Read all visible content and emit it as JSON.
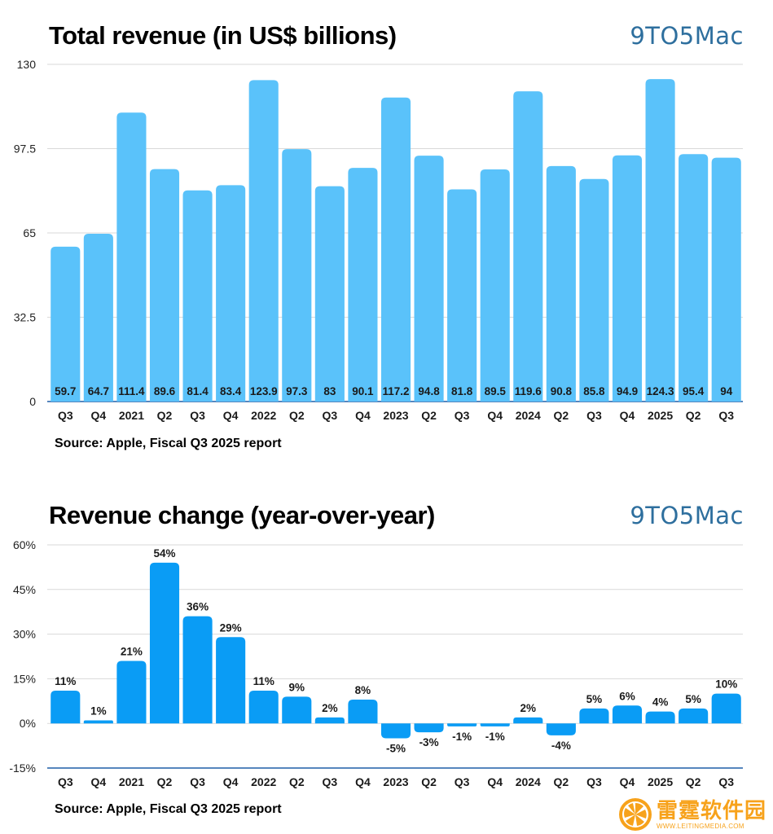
{
  "brand": "9TO5Mac",
  "source": "Source: Apple, Fiscal Q3 2025 report",
  "watermark": {
    "name": "雷霆软件园",
    "url": "WWW.LEITINGMEDIA.COM"
  },
  "colors": {
    "revenue_bar": "#5ac2fa",
    "change_bar": "#0a9cf5",
    "axis_line": "#1f5fa8",
    "grid": "#d9d9d9",
    "brand": "#2e6f9e",
    "watermark": "#f7a21b"
  },
  "chart_data": [
    {
      "type": "bar",
      "title": "Total revenue (in US$ billions)",
      "categories": [
        "Q3",
        "Q4",
        "2021",
        "Q2",
        "Q3",
        "Q4",
        "2022",
        "Q2",
        "Q3",
        "Q4",
        "2023",
        "Q2",
        "Q3",
        "Q4",
        "2024",
        "Q2",
        "Q3",
        "Q4",
        "2025",
        "Q2",
        "Q3"
      ],
      "values": [
        59.7,
        64.7,
        111.4,
        89.6,
        81.4,
        83.4,
        123.9,
        97.3,
        83,
        90.1,
        117.2,
        94.8,
        81.8,
        89.5,
        119.6,
        90.8,
        85.8,
        94.9,
        124.3,
        95.4,
        94
      ],
      "data_labels": [
        "59.7",
        "64.7",
        "111.4",
        "89.6",
        "81.4",
        "83.4",
        "123.9",
        "97.3",
        "83",
        "90.1",
        "117.2",
        "94.8",
        "81.8",
        "89.5",
        "119.6",
        "90.8",
        "85.8",
        "94.9",
        "124.3",
        "95.4",
        "94"
      ],
      "yticks": [
        "130",
        "97.5",
        "65",
        "32.5",
        "0"
      ],
      "ylim": [
        0,
        130
      ],
      "grid": true,
      "label_position": "inside-bottom"
    },
    {
      "type": "bar",
      "title": "Revenue change (year-over-year)",
      "categories": [
        "Q3",
        "Q4",
        "2021",
        "Q2",
        "Q3",
        "Q4",
        "2022",
        "Q2",
        "Q3",
        "Q4",
        "2023",
        "Q2",
        "Q3",
        "Q4",
        "2024",
        "Q2",
        "Q3",
        "Q4",
        "2025",
        "Q2",
        "Q3"
      ],
      "values": [
        11,
        1,
        21,
        54,
        36,
        29,
        11,
        9,
        2,
        8,
        -5,
        -3,
        -1,
        -1,
        2,
        -4,
        5,
        6,
        4,
        5,
        10
      ],
      "data_labels": [
        "11%",
        "1%",
        "21%",
        "54%",
        "36%",
        "29%",
        "11%",
        "9%",
        "2%",
        "8%",
        "-5%",
        "-3%",
        "-1%",
        "-1%",
        "2%",
        "-4%",
        "5%",
        "6%",
        "4%",
        "5%",
        "10%"
      ],
      "yticks": [
        "60%",
        "45%",
        "30%",
        "15%",
        "0%",
        "-15%"
      ],
      "ylim": [
        -15,
        60
      ],
      "grid": true,
      "label_position": "outside"
    }
  ]
}
